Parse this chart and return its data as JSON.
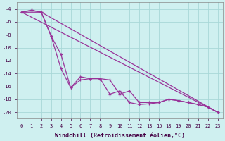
{
  "xlabel": "Windchill (Refroidissement éolien,°C)",
  "background_color": "#cff0f0",
  "grid_color": "#a8d8d8",
  "line_color": "#993399",
  "xlim": [
    -0.5,
    20.5
  ],
  "ylim": [
    -21,
    -3
  ],
  "xtick_pos": [
    0,
    1,
    2,
    3,
    4,
    5,
    6,
    7,
    8,
    9,
    10,
    11,
    12,
    13,
    14,
    15,
    16,
    17,
    18,
    19,
    20
  ],
  "xtick_labels": [
    "0",
    "1",
    "2",
    "3",
    "4",
    "5",
    "6",
    "7",
    "8",
    "9",
    "10",
    "11",
    "12",
    "13",
    "15",
    "18",
    "19",
    "20",
    "21",
    "22",
    "23"
  ],
  "yticks": [
    -4,
    -6,
    -8,
    -10,
    -12,
    -14,
    -16,
    -18,
    -20
  ],
  "line1_x": [
    0,
    1,
    2,
    3,
    4,
    5,
    6,
    7,
    8,
    9,
    10,
    11,
    12,
    13,
    14,
    15,
    16,
    17,
    18,
    19,
    20
  ],
  "line1_y": [
    -4.5,
    -4.2,
    -4.5,
    -8.2,
    -13.2,
    -16.2,
    -15.0,
    -14.8,
    -14.8,
    -15.0,
    -17.2,
    -16.7,
    -18.5,
    -18.5,
    -18.5,
    -18.0,
    -18.2,
    -18.5,
    -18.8,
    -19.2,
    -20.0
  ],
  "line2_x": [
    0,
    1,
    2,
    3,
    4,
    5,
    6,
    7,
    8,
    9,
    10,
    11,
    12,
    13,
    14,
    15,
    16,
    17,
    18,
    19,
    20
  ],
  "line2_y": [
    -4.5,
    -4.2,
    -4.5,
    -8.2,
    -11.0,
    -16.2,
    -14.5,
    -14.8,
    -14.8,
    -17.2,
    -16.7,
    -18.5,
    -18.8,
    -18.7,
    -18.5,
    -18.0,
    -18.2,
    -18.5,
    -18.8,
    -19.2,
    -20.0
  ],
  "line3_x": [
    0,
    20
  ],
  "line3_y": [
    -4.5,
    -20.0
  ],
  "line4_x": [
    0,
    2,
    20
  ],
  "line4_y": [
    -4.5,
    -4.5,
    -20.0
  ]
}
